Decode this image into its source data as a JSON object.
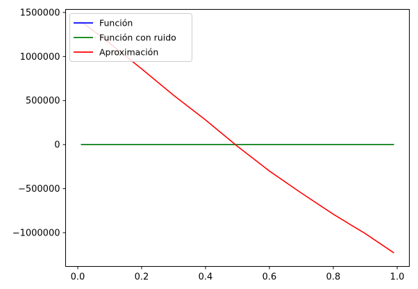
{
  "chart_data": {
    "type": "line",
    "title": "",
    "xlabel": "",
    "ylabel": "",
    "xlim": [
      -0.038,
      1.038
    ],
    "ylim": [
      -1383000,
      1535000
    ],
    "grid": false,
    "legend": "top-left",
    "x_ticks": [
      0.0,
      0.2,
      0.4,
      0.6,
      0.8,
      1.0
    ],
    "x_tick_labels": [
      "0.0",
      "0.2",
      "0.4",
      "0.6",
      "0.8",
      "1.0"
    ],
    "y_ticks": [
      -1000000,
      -500000,
      0,
      500000,
      1000000,
      1500000
    ],
    "y_tick_labels": [
      "−1000000",
      "−500000",
      "0",
      "500000",
      "1000000",
      "1500000"
    ],
    "series": [
      {
        "name": "Función",
        "color": "#0000ff",
        "x": [
          0.01,
          0.1,
          0.2,
          0.3,
          0.4,
          0.5,
          0.6,
          0.7,
          0.8,
          0.9,
          0.99
        ],
        "y": [
          0,
          0,
          0,
          0,
          0,
          0,
          0,
          0,
          0,
          0,
          0
        ]
      },
      {
        "name": "Función con ruido",
        "color": "#008000",
        "x": [
          0.01,
          0.1,
          0.2,
          0.3,
          0.4,
          0.5,
          0.6,
          0.7,
          0.8,
          0.9,
          0.99
        ],
        "y": [
          0,
          0,
          0,
          0,
          0,
          0,
          0,
          0,
          0,
          0,
          0
        ]
      },
      {
        "name": "Aproximación",
        "color": "#ff0000",
        "x": [
          0.01,
          0.1,
          0.2,
          0.3,
          0.4,
          0.5,
          0.6,
          0.7,
          0.8,
          0.9,
          0.99
        ],
        "y": [
          1400000,
          1150000,
          860000,
          560000,
          280000,
          -20000,
          -300000,
          -550000,
          -790000,
          -1010000,
          -1230000
        ]
      }
    ]
  }
}
